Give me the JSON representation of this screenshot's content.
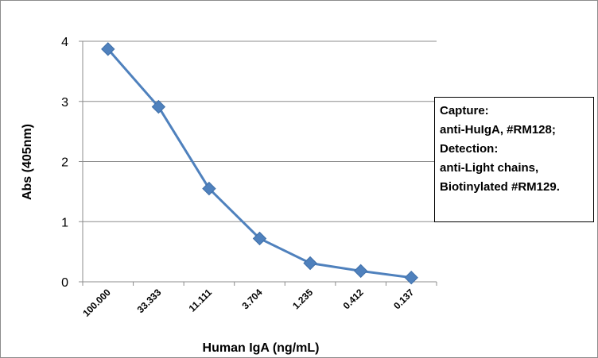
{
  "chart_data": {
    "type": "line",
    "categories": [
      "100.000",
      "33.333",
      "11.111",
      "3.704",
      "1.235",
      "0.412",
      "0.137"
    ],
    "series": [
      {
        "values": [
          3.87,
          2.91,
          1.55,
          0.72,
          0.31,
          0.18,
          0.07
        ]
      }
    ],
    "xlabel": "Human IgA (ng/mL)",
    "ylabel": "Abs (405nm)",
    "ylim": [
      0,
      4
    ],
    "yticks": [
      "0",
      "1",
      "2",
      "3",
      "4"
    ],
    "grid": "horizontal",
    "marker": "diamond",
    "series_color": "#4F81BD",
    "annotation": [
      "Capture:",
      "anti-HuIgA, #RM128;",
      "Detection:",
      "anti-Light chains,",
      "Biotinylated #RM129."
    ]
  }
}
